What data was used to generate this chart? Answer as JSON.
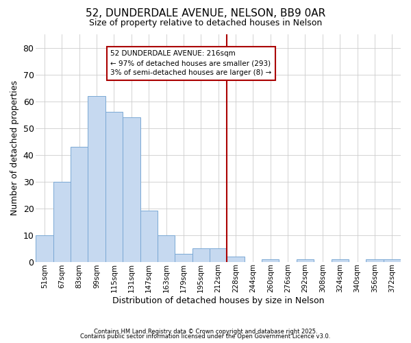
{
  "title": "52, DUNDERDALE AVENUE, NELSON, BB9 0AR",
  "subtitle": "Size of property relative to detached houses in Nelson",
  "xlabel": "Distribution of detached houses by size in Nelson",
  "ylabel": "Number of detached properties",
  "bins": [
    "51sqm",
    "67sqm",
    "83sqm",
    "99sqm",
    "115sqm",
    "131sqm",
    "147sqm",
    "163sqm",
    "179sqm",
    "195sqm",
    "212sqm",
    "228sqm",
    "244sqm",
    "260sqm",
    "276sqm",
    "292sqm",
    "308sqm",
    "324sqm",
    "340sqm",
    "356sqm",
    "372sqm"
  ],
  "values": [
    10,
    30,
    43,
    62,
    56,
    54,
    19,
    10,
    3,
    5,
    5,
    2,
    0,
    1,
    0,
    1,
    0,
    1,
    0,
    1,
    1
  ],
  "bar_color": "#c6d9f0",
  "bar_edge_color": "#7aa8d4",
  "vline_color": "#aa0000",
  "annotation_text": "52 DUNDERDALE AVENUE: 216sqm\n← 97% of detached houses are smaller (293)\n3% of semi-detached houses are larger (8) →",
  "annotation_box_color": "#ffffff",
  "annotation_box_edge": "#aa0000",
  "ylim": [
    0,
    85
  ],
  "yticks": [
    0,
    10,
    20,
    30,
    40,
    50,
    60,
    70,
    80
  ],
  "grid_color": "#cccccc",
  "bg_color": "#ffffff",
  "plot_bg_color": "#ffffff",
  "footer1": "Contains HM Land Registry data © Crown copyright and database right 2025.",
  "footer2": "Contains public sector information licensed under the Open Government Licence v3.0.",
  "vline_index": 10.5
}
